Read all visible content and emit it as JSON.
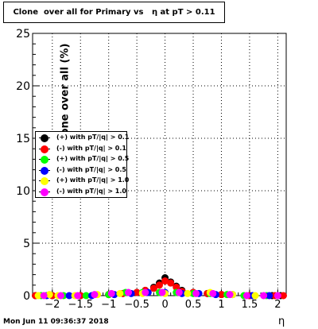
{
  "title": "Clone  over all for Primary vs   η at pT > 0.11",
  "footer_date": "Mon Jun 11 09:36:37 2018",
  "chart_data": {
    "type": "scatter",
    "title": "Clone  over all for Primary vs   η at pT > 0.11",
    "xlabel": "η",
    "ylabel": "Clone  over all (%)",
    "xlim": [
      -2.35,
      2.15
    ],
    "ylim": [
      0,
      25
    ],
    "x_ticks": [
      "−2",
      "−1.5",
      "−1",
      "−0.5",
      "0",
      "0.5",
      "1",
      "1.5",
      "2"
    ],
    "x_tick_values": [
      -2,
      -1.5,
      -1,
      -0.5,
      0,
      0.5,
      1,
      1.5,
      2
    ],
    "y_ticks": [
      "0",
      "5",
      "10",
      "15",
      "20",
      "25"
    ],
    "y_tick_values": [
      0,
      5,
      10,
      15,
      20,
      25
    ],
    "grid": true,
    "legend_position": "left-middle",
    "series": [
      {
        "name": "(+) with pT/|q| > 0.1",
        "color": "#000000",
        "x": [
          -2.3,
          -2.0,
          -1.5,
          -1.0,
          -0.75,
          -0.5,
          -0.35,
          -0.2,
          -0.1,
          0.0,
          0.1,
          0.2,
          0.3,
          0.5,
          0.75,
          1.0,
          1.5,
          1.9,
          2.05
        ],
        "y": [
          0.0,
          0.0,
          0.0,
          0.1,
          0.2,
          0.3,
          0.5,
          0.8,
          1.2,
          1.7,
          1.3,
          0.9,
          0.5,
          0.3,
          0.2,
          0.1,
          0.0,
          0.0,
          0.0
        ]
      },
      {
        "name": "(-) with pT/|q| > 0.1",
        "color": "#ff0000",
        "x": [
          -2.3,
          -2.0,
          -1.5,
          -1.0,
          -0.75,
          -0.5,
          -0.35,
          -0.2,
          -0.1,
          0.0,
          0.1,
          0.2,
          0.3,
          0.5,
          0.75,
          1.0,
          1.5,
          1.95,
          2.1
        ],
        "y": [
          0.0,
          0.0,
          0.0,
          0.1,
          0.2,
          0.3,
          0.5,
          0.7,
          1.0,
          1.4,
          1.2,
          0.8,
          0.4,
          0.3,
          0.2,
          0.1,
          0.0,
          0.0,
          0.0
        ]
      },
      {
        "name": "(+) with pT/|q| > 0.5",
        "color": "#00ff00",
        "x": [
          -2.2,
          -1.8,
          -1.4,
          -1.0,
          -0.7,
          -0.4,
          -0.1,
          0.2,
          0.5,
          0.8,
          1.1,
          1.4,
          1.8
        ],
        "y": [
          0.0,
          0.0,
          0.0,
          0.1,
          0.3,
          0.3,
          0.3,
          0.3,
          0.2,
          0.2,
          0.1,
          0.0,
          0.0
        ]
      },
      {
        "name": "(-) with pT/|q| > 0.5",
        "color": "#0000ff",
        "x": [
          -2.1,
          -1.7,
          -1.3,
          -0.9,
          -0.6,
          -0.3,
          0.0,
          0.3,
          0.6,
          0.9,
          1.2,
          1.55,
          1.85
        ],
        "y": [
          0.0,
          0.0,
          0.0,
          0.1,
          0.2,
          0.3,
          0.3,
          0.2,
          0.2,
          0.1,
          0.1,
          0.0,
          0.0
        ]
      },
      {
        "name": "(+) with pT/|q| > 1.0",
        "color": "#ffff00",
        "x": [
          -2.25,
          -2.05,
          -1.9,
          -1.6,
          -1.2,
          -0.8,
          -0.4,
          0.0,
          0.4,
          0.8,
          1.2,
          1.6
        ],
        "y": [
          0.0,
          0.1,
          0.0,
          0.0,
          0.1,
          0.2,
          0.2,
          0.2,
          0.2,
          0.3,
          0.1,
          0.0
        ]
      },
      {
        "name": "(-) with pT/|q| > 1.0",
        "color": "#ff00ff",
        "x": [
          -2.15,
          -1.85,
          -1.55,
          -1.25,
          -0.95,
          -0.65,
          -0.35,
          -0.05,
          0.25,
          0.55,
          0.85,
          1.15,
          1.45,
          1.75,
          2.0
        ],
        "y": [
          0.0,
          0.0,
          0.0,
          0.1,
          0.2,
          0.3,
          0.3,
          0.3,
          0.3,
          0.2,
          0.2,
          0.1,
          0.0,
          0.0,
          0.0
        ]
      }
    ]
  }
}
